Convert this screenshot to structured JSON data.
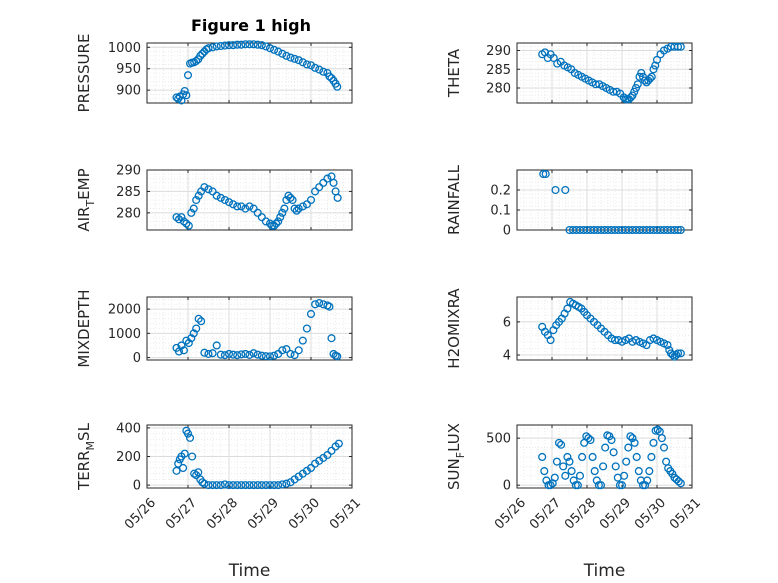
{
  "figure": {
    "title": "Figure 1 high"
  },
  "colors": {
    "marker": "#0072BD",
    "axis": "#262626",
    "grid_major": "#dcdcdc",
    "grid_minor": "#e6e6e6"
  },
  "chart_data": [
    {
      "type": "scatter",
      "ylabel": "PRESSURE",
      "ylabel_sub": "",
      "ylabel_tail": "",
      "ylim": [
        870,
        1010
      ],
      "yticks": [
        900,
        950,
        1000
      ],
      "ytick_labels": [
        "900",
        "950",
        "1000"
      ],
      "xlim": [
        0,
        5
      ],
      "xticks": [
        0,
        1,
        2,
        3,
        4,
        5
      ],
      "show_xticklabels": false,
      "grid": true,
      "minor_grid": true,
      "x": [
        0.72,
        0.76,
        0.8,
        0.84,
        0.88,
        0.92,
        0.96,
        1.0,
        1.05,
        1.1,
        1.15,
        1.2,
        1.25,
        1.3,
        1.35,
        1.4,
        1.45,
        1.5,
        1.6,
        1.7,
        1.8,
        1.9,
        2.0,
        2.1,
        2.2,
        2.3,
        2.4,
        2.5,
        2.6,
        2.7,
        2.8,
        2.9,
        3.0,
        3.1,
        3.2,
        3.3,
        3.4,
        3.5,
        3.6,
        3.7,
        3.8,
        3.9,
        4.0,
        4.1,
        4.2,
        4.3,
        4.4,
        4.45,
        4.5,
        4.55,
        4.6,
        4.64
      ],
      "y": [
        883,
        880,
        885,
        876,
        890,
        898,
        888,
        935,
        962,
        964,
        965,
        968,
        972,
        980,
        985,
        990,
        995,
        998,
        1000,
        1002,
        1003,
        1004,
        1005,
        1005,
        1006,
        1006,
        1007,
        1007,
        1007,
        1006,
        1005,
        1002,
        998,
        994,
        990,
        985,
        980,
        976,
        973,
        970,
        965,
        960,
        958,
        952,
        948,
        943,
        940,
        932,
        928,
        922,
        915,
        908
      ]
    },
    {
      "type": "scatter",
      "ylabel": "THETA",
      "ylabel_sub": "",
      "ylabel_tail": "",
      "ylim": [
        276,
        292
      ],
      "yticks": [
        280,
        285,
        290
      ],
      "ytick_labels": [
        "280",
        "285",
        "290"
      ],
      "xlim": [
        0,
        5
      ],
      "xticks": [
        0,
        1,
        2,
        3,
        4,
        5
      ],
      "show_xticklabels": false,
      "grid": true,
      "minor_grid": true,
      "x": [
        0.72,
        0.8,
        0.88,
        0.96,
        1.05,
        1.15,
        1.25,
        1.35,
        1.45,
        1.55,
        1.65,
        1.75,
        1.85,
        1.95,
        2.05,
        2.15,
        2.25,
        2.35,
        2.45,
        2.55,
        2.65,
        2.75,
        2.85,
        2.95,
        3.05,
        3.1,
        3.15,
        3.2,
        3.25,
        3.3,
        3.35,
        3.4,
        3.45,
        3.5,
        3.55,
        3.6,
        3.65,
        3.7,
        3.75,
        3.8,
        3.85,
        3.9,
        3.95,
        4.0,
        4.1,
        4.2,
        4.3,
        4.4,
        4.5,
        4.6,
        4.68
      ],
      "y": [
        289,
        289.5,
        288,
        289,
        288,
        286.5,
        287,
        286,
        285.5,
        285,
        284,
        283.5,
        283,
        282.5,
        282,
        281.5,
        281,
        281,
        280.5,
        280,
        279.5,
        279,
        279,
        278.5,
        277.5,
        277,
        277,
        277,
        277.5,
        278,
        279,
        280,
        281,
        283,
        284,
        283,
        282,
        281.5,
        282,
        282.5,
        283,
        285,
        286,
        287.5,
        289,
        290,
        290.5,
        291,
        291,
        291,
        291
      ]
    },
    {
      "type": "scatter",
      "ylabel": "AIR",
      "ylabel_sub": "T",
      "ylabel_tail": "EMP",
      "ylim": [
        276,
        290
      ],
      "yticks": [
        280,
        285,
        290
      ],
      "ytick_labels": [
        "280",
        "285",
        "290"
      ],
      "xlim": [
        0,
        5
      ],
      "xticks": [
        0,
        1,
        2,
        3,
        4,
        5
      ],
      "show_xticklabels": false,
      "grid": true,
      "minor_grid": true,
      "x": [
        0.72,
        0.78,
        0.84,
        0.9,
        0.96,
        1.02,
        1.08,
        1.14,
        1.2,
        1.26,
        1.32,
        1.4,
        1.5,
        1.6,
        1.7,
        1.8,
        1.9,
        2.0,
        2.1,
        2.2,
        2.3,
        2.4,
        2.5,
        2.6,
        2.7,
        2.8,
        2.9,
        3.0,
        3.05,
        3.1,
        3.15,
        3.2,
        3.25,
        3.3,
        3.35,
        3.4,
        3.45,
        3.5,
        3.55,
        3.6,
        3.65,
        3.7,
        3.8,
        3.9,
        4.0,
        4.1,
        4.2,
        4.3,
        4.4,
        4.5,
        4.55,
        4.6,
        4.65
      ],
      "y": [
        279,
        278.5,
        279,
        278,
        277.5,
        277,
        280,
        281,
        283,
        284,
        285,
        286,
        285.5,
        285,
        284,
        283.5,
        283,
        282.5,
        282,
        281.5,
        281.5,
        281,
        281.5,
        281,
        280,
        279,
        278,
        277.5,
        277,
        277,
        277.5,
        278,
        279,
        280,
        281,
        283,
        284,
        283.5,
        283,
        281,
        280.5,
        281,
        281.5,
        282,
        283,
        285,
        286,
        287,
        288,
        288.5,
        287,
        285,
        283.5
      ]
    },
    {
      "type": "scatter",
      "ylabel": "RAINFALL",
      "ylabel_sub": "",
      "ylabel_tail": "",
      "ylim": [
        0,
        0.3
      ],
      "yticks": [
        0,
        0.1,
        0.2
      ],
      "ytick_labels": [
        "0",
        "0.1",
        "0.2"
      ],
      "xlim": [
        0,
        5
      ],
      "xticks": [
        0,
        1,
        2,
        3,
        4,
        5
      ],
      "show_xticklabels": false,
      "grid": true,
      "minor_grid": true,
      "x": [
        0.75,
        0.82,
        1.1,
        1.38,
        1.5,
        1.6,
        1.7,
        1.8,
        1.9,
        2.0,
        2.1,
        2.2,
        2.3,
        2.4,
        2.5,
        2.6,
        2.7,
        2.8,
        2.9,
        3.0,
        3.1,
        3.2,
        3.3,
        3.4,
        3.5,
        3.6,
        3.7,
        3.8,
        3.9,
        4.0,
        4.1,
        4.2,
        4.3,
        4.4,
        4.5,
        4.6,
        4.68
      ],
      "y": [
        0.28,
        0.28,
        0.2,
        0.2,
        0,
        0,
        0,
        0,
        0,
        0,
        0,
        0,
        0,
        0,
        0,
        0,
        0,
        0,
        0,
        0,
        0,
        0,
        0,
        0,
        0,
        0,
        0,
        0,
        0,
        0,
        0,
        0,
        0,
        0,
        0,
        0,
        0
      ]
    },
    {
      "type": "scatter",
      "ylabel": "MIXDEPTH",
      "ylabel_sub": "",
      "ylabel_tail": "",
      "ylim": [
        -100,
        2500
      ],
      "yticks": [
        0,
        1000,
        2000
      ],
      "ytick_labels": [
        "0",
        "1000",
        "2000"
      ],
      "xlim": [
        0,
        5
      ],
      "xticks": [
        0,
        1,
        2,
        3,
        4,
        5
      ],
      "show_xticklabels": false,
      "grid": true,
      "minor_grid": true,
      "x": [
        0.72,
        0.78,
        0.84,
        0.9,
        0.96,
        1.02,
        1.08,
        1.14,
        1.2,
        1.26,
        1.32,
        1.4,
        1.5,
        1.6,
        1.7,
        1.8,
        1.9,
        2.0,
        2.1,
        2.2,
        2.3,
        2.4,
        2.5,
        2.6,
        2.7,
        2.8,
        2.9,
        3.0,
        3.1,
        3.2,
        3.3,
        3.4,
        3.5,
        3.6,
        3.7,
        3.8,
        3.9,
        4.0,
        4.1,
        4.2,
        4.3,
        4.4,
        4.45,
        4.5,
        4.55,
        4.6,
        4.64
      ],
      "y": [
        400,
        250,
        500,
        300,
        700,
        600,
        800,
        1000,
        1200,
        1600,
        1500,
        200,
        150,
        180,
        500,
        120,
        100,
        150,
        120,
        100,
        130,
        150,
        110,
        180,
        120,
        80,
        60,
        50,
        80,
        150,
        300,
        350,
        150,
        100,
        300,
        700,
        1200,
        1800,
        2200,
        2250,
        2200,
        2150,
        2100,
        800,
        150,
        80,
        50
      ]
    },
    {
      "type": "scatter",
      "ylabel": "H2OMIXRA",
      "ylabel_sub": "",
      "ylabel_tail": "",
      "ylim": [
        3.7,
        7.5
      ],
      "yticks": [
        4,
        6
      ],
      "ytick_labels": [
        "4",
        "6"
      ],
      "xlim": [
        0,
        5
      ],
      "xticks": [
        0,
        1,
        2,
        3,
        4,
        5
      ],
      "show_xticklabels": false,
      "grid": true,
      "minor_grid": true,
      "x": [
        0.72,
        0.8,
        0.88,
        0.96,
        1.04,
        1.12,
        1.2,
        1.28,
        1.36,
        1.44,
        1.52,
        1.6,
        1.68,
        1.76,
        1.84,
        1.92,
        2.0,
        2.1,
        2.2,
        2.3,
        2.4,
        2.5,
        2.6,
        2.7,
        2.8,
        2.9,
        3.0,
        3.1,
        3.2,
        3.3,
        3.4,
        3.5,
        3.6,
        3.7,
        3.8,
        3.9,
        4.0,
        4.1,
        4.2,
        4.3,
        4.35,
        4.4,
        4.45,
        4.5,
        4.55,
        4.6,
        4.68
      ],
      "y": [
        5.7,
        5.4,
        5.2,
        4.9,
        5.5,
        5.8,
        6.0,
        6.2,
        6.5,
        6.8,
        7.2,
        7.1,
        7.0,
        6.9,
        6.8,
        6.6,
        6.4,
        6.2,
        6.0,
        5.8,
        5.6,
        5.4,
        5.2,
        5.0,
        4.9,
        4.9,
        4.8,
        4.9,
        5.0,
        4.8,
        4.9,
        4.8,
        4.7,
        4.6,
        4.9,
        5.0,
        4.9,
        4.8,
        4.7,
        4.6,
        4.3,
        4.1,
        4.0,
        3.9,
        4.0,
        4.1,
        4.1
      ]
    },
    {
      "type": "scatter",
      "ylabel": "TERR",
      "ylabel_sub": "M",
      "ylabel_tail": "SL",
      "ylim": [
        -20,
        420
      ],
      "yticks": [
        0,
        200,
        400
      ],
      "ytick_labels": [
        "0",
        "200",
        "400"
      ],
      "xlim": [
        0,
        5
      ],
      "xticks": [
        0,
        1,
        2,
        3,
        4,
        5
      ],
      "show_xticklabels": true,
      "xtick_labels": [
        "05/26",
        "05/27",
        "05/28",
        "05/29",
        "05/30",
        "05/31"
      ],
      "xlabel": "Time",
      "grid": true,
      "minor_grid": true,
      "x": [
        0.72,
        0.76,
        0.8,
        0.84,
        0.88,
        0.92,
        0.96,
        1.0,
        1.05,
        1.1,
        1.15,
        1.2,
        1.25,
        1.3,
        1.35,
        1.4,
        1.5,
        1.6,
        1.7,
        1.8,
        1.9,
        2.0,
        2.1,
        2.2,
        2.3,
        2.4,
        2.5,
        2.6,
        2.7,
        2.8,
        2.9,
        3.0,
        3.1,
        3.2,
        3.3,
        3.4,
        3.5,
        3.6,
        3.7,
        3.8,
        3.9,
        4.0,
        4.1,
        4.2,
        4.3,
        4.4,
        4.5,
        4.6,
        4.68
      ],
      "y": [
        100,
        150,
        180,
        200,
        120,
        220,
        380,
        360,
        330,
        200,
        80,
        70,
        90,
        40,
        20,
        10,
        0,
        0,
        0,
        0,
        5,
        0,
        0,
        0,
        0,
        0,
        0,
        0,
        0,
        0,
        0,
        0,
        0,
        0,
        5,
        10,
        20,
        40,
        60,
        80,
        100,
        120,
        150,
        170,
        190,
        210,
        240,
        270,
        290
      ]
    },
    {
      "type": "scatter",
      "ylabel": "SUN",
      "ylabel_sub": "F",
      "ylabel_tail": "LUX",
      "ylim": [
        -30,
        640
      ],
      "yticks": [
        0,
        500
      ],
      "ytick_labels": [
        "0",
        "500"
      ],
      "xlim": [
        0,
        5
      ],
      "xticks": [
        0,
        1,
        2,
        3,
        4,
        5
      ],
      "show_xticklabels": true,
      "xtick_labels": [
        "05/26",
        "05/27",
        "05/28",
        "05/29",
        "05/30",
        "05/31"
      ],
      "xlabel": "Time",
      "grid": true,
      "minor_grid": true,
      "x": [
        0.72,
        0.78,
        0.84,
        0.9,
        0.96,
        1.02,
        1.08,
        1.14,
        1.2,
        1.26,
        1.32,
        1.38,
        1.44,
        1.5,
        1.56,
        1.62,
        1.68,
        1.74,
        1.8,
        1.86,
        1.92,
        1.98,
        2.04,
        2.1,
        2.16,
        2.22,
        2.28,
        2.34,
        2.4,
        2.46,
        2.52,
        2.58,
        2.64,
        2.7,
        2.76,
        2.82,
        2.88,
        2.94,
        3.0,
        3.06,
        3.12,
        3.18,
        3.24,
        3.3,
        3.36,
        3.42,
        3.48,
        3.54,
        3.6,
        3.66,
        3.72,
        3.78,
        3.84,
        3.9,
        3.96,
        4.02,
        4.08,
        4.14,
        4.2,
        4.26,
        4.32,
        4.38,
        4.44,
        4.5,
        4.56,
        4.62,
        4.68
      ],
      "y": [
        300,
        150,
        50,
        0,
        0,
        20,
        80,
        250,
        450,
        430,
        200,
        100,
        300,
        250,
        150,
        50,
        0,
        0,
        100,
        300,
        450,
        520,
        500,
        480,
        300,
        150,
        50,
        0,
        0,
        200,
        400,
        530,
        520,
        480,
        350,
        200,
        80,
        0,
        0,
        100,
        250,
        400,
        520,
        500,
        450,
        300,
        150,
        50,
        0,
        0,
        50,
        150,
        300,
        450,
        580,
        590,
        570,
        500,
        400,
        250,
        180,
        150,
        120,
        80,
        60,
        40,
        20
      ]
    }
  ]
}
